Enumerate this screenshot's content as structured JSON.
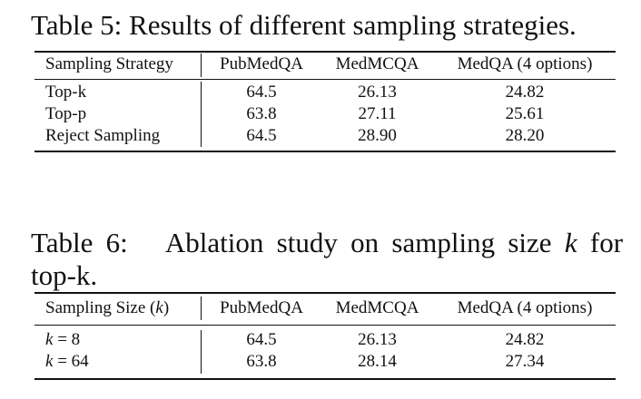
{
  "table5": {
    "caption": "Table 5:  Results of different sampling strategies.",
    "header": [
      "Sampling Strategy",
      "PubMedQA",
      "MedMCQA",
      "MedQA (4 options)"
    ],
    "rows": [
      [
        "Top-k",
        "64.5",
        "26.13",
        "24.82"
      ],
      [
        "Top-p",
        "63.8",
        "27.11",
        "25.61"
      ],
      [
        "Reject Sampling",
        "64.5",
        "28.90",
        "28.20"
      ]
    ]
  },
  "table6": {
    "caption_prefix": "Table 6:",
    "caption_text": "Ablation study on sampling size",
    "caption_var": "k",
    "caption_suffix": "for",
    "caption_line2": "top-k.",
    "header": [
      "Sampling Size (",
      "k",
      ")",
      "PubMedQA",
      "MedMCQA",
      "MedQA (4 options)"
    ],
    "rows": [
      [
        "k",
        "= 8",
        "64.5",
        "26.13",
        "24.82"
      ],
      [
        "k",
        "= 64",
        "63.8",
        "28.14",
        "27.34"
      ]
    ]
  }
}
